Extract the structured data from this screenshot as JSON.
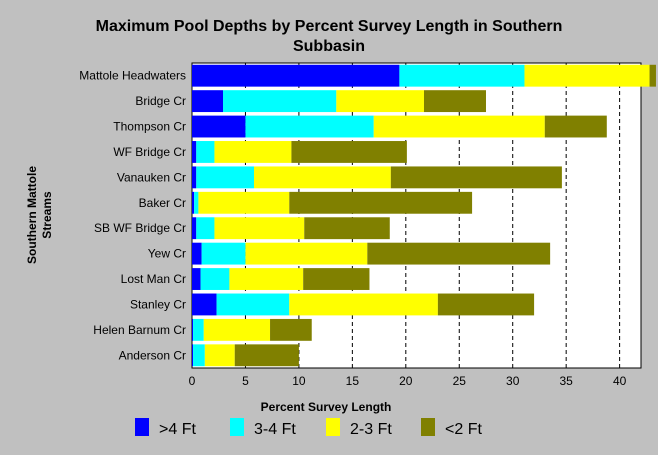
{
  "chart_data": {
    "type": "bar",
    "orientation": "horizontal",
    "stacked": true,
    "title_lines": [
      "Maximum Pool Depths by Percent Survey Length in Southern",
      "Subbasin"
    ],
    "xlabel": "Percent Survey Length",
    "ylabel_lines": [
      "Southern Mattole",
      "Streams"
    ],
    "xlim": [
      0,
      42
    ],
    "xticks": [
      0,
      5,
      10,
      15,
      20,
      25,
      30,
      35,
      40
    ],
    "grid": "vertical dashed",
    "legend_position": "bottom",
    "categories": [
      "Mattole Headwaters",
      "Bridge Cr",
      "Thompson Cr",
      "WF Bridge Cr",
      "Vanauken Cr",
      "Baker Cr",
      "SB WF Bridge Cr",
      "Yew Cr",
      "Lost Man Cr",
      "Stanley Cr",
      "Helen Barnum Cr",
      "Anderson Cr"
    ],
    "series": [
      {
        "name": ">4 Ft",
        "color": "#0000ff",
        "values": [
          19.4,
          2.9,
          5.0,
          0.4,
          0.4,
          0.2,
          0.4,
          0.9,
          0.8,
          2.3,
          0.1,
          0.1
        ]
      },
      {
        "name": "3-4 Ft",
        "color": "#00ffff",
        "values": [
          11.7,
          10.6,
          12.0,
          1.7,
          5.4,
          0.4,
          1.7,
          4.1,
          2.7,
          6.8,
          1.0,
          1.1
        ]
      },
      {
        "name": "2-3 Ft",
        "color": "#ffff00",
        "values": [
          11.7,
          8.2,
          16.0,
          7.2,
          12.8,
          8.5,
          8.4,
          11.4,
          6.9,
          13.9,
          6.2,
          2.8
        ]
      },
      {
        "name": "<2 Ft",
        "color": "#808000",
        "values": [
          0.6,
          5.8,
          5.8,
          10.8,
          16.0,
          17.1,
          8.0,
          17.1,
          6.2,
          9.0,
          3.9,
          6.0
        ]
      }
    ]
  }
}
